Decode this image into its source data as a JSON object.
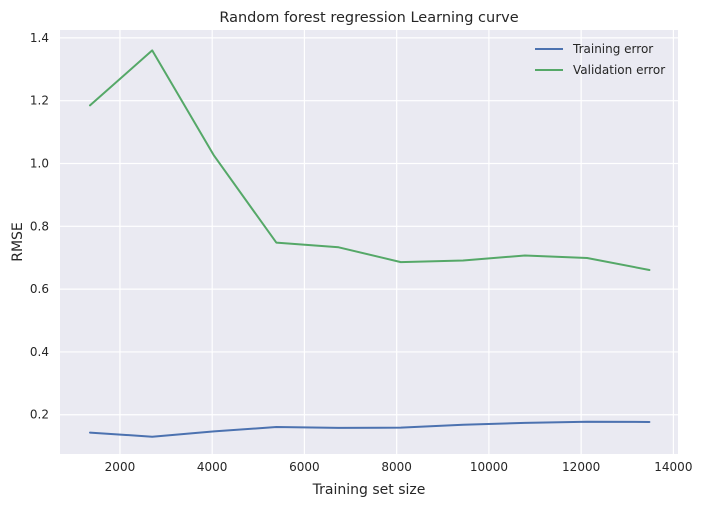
{
  "chart_data": {
    "type": "line",
    "title": "Random forest regression Learning curve",
    "xlabel": "Training set size",
    "ylabel": "RMSE",
    "xlim": [
      700,
      14100
    ],
    "ylim": [
      0.075,
      1.425
    ],
    "xticks": [
      2000,
      4000,
      6000,
      8000,
      10000,
      12000,
      14000
    ],
    "xtick_labels": [
      "2000",
      "4000",
      "6000",
      "8000",
      "10000",
      "12000",
      "14000"
    ],
    "yticks": [
      0.2,
      0.4,
      0.6,
      0.8,
      1.0,
      1.2,
      1.4
    ],
    "ytick_labels": [
      "0.2",
      "0.4",
      "0.6",
      "0.8",
      "1.0",
      "1.2",
      "1.4"
    ],
    "grid": true,
    "legend_position": "top-right",
    "x": [
      1350,
      2700,
      4040,
      5390,
      6740,
      8090,
      9440,
      10780,
      12130,
      13480
    ],
    "series": [
      {
        "name": "Training error",
        "color": "#4c72b0",
        "values": [
          0.143,
          0.13,
          0.147,
          0.161,
          0.158,
          0.159,
          0.168,
          0.174,
          0.178,
          0.177
        ]
      },
      {
        "name": "Validation error",
        "color": "#55a868",
        "values": [
          1.185,
          1.36,
          1.025,
          0.748,
          0.733,
          0.686,
          0.691,
          0.707,
          0.699,
          0.661
        ]
      }
    ]
  },
  "style": {
    "plot_background": "#eaeaf2",
    "grid_color": "#ffffff",
    "text_color": "#262626"
  }
}
